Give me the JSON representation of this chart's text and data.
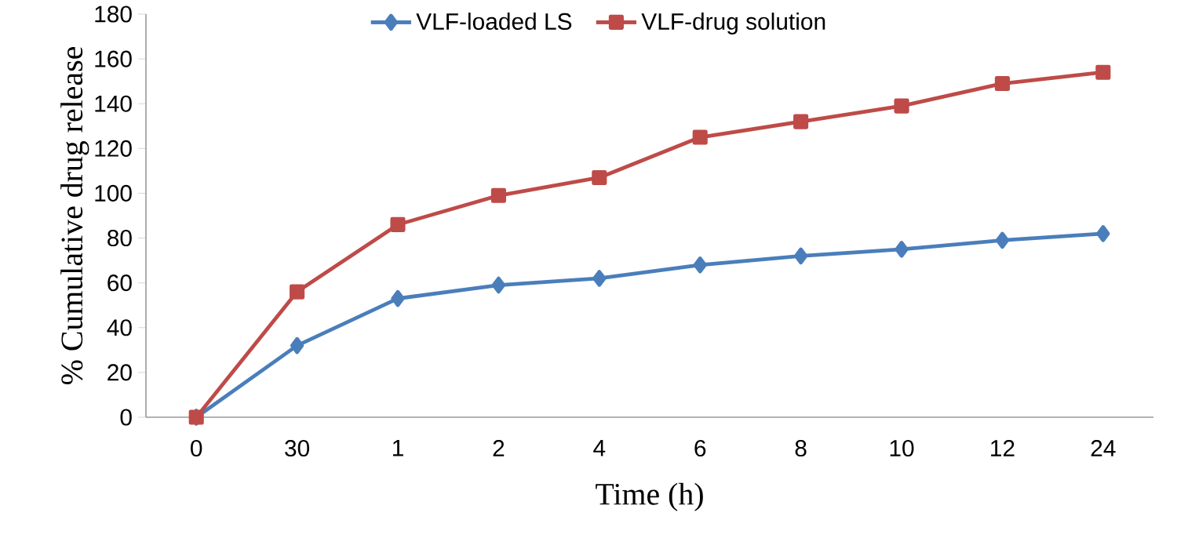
{
  "chart_data": {
    "type": "line",
    "xlabel": "Time (h)",
    "ylabel": "% Cumulative drug release",
    "categories": [
      "0",
      "30",
      "1",
      "2",
      "4",
      "6",
      "8",
      "10",
      "12",
      "24"
    ],
    "ylim": [
      0,
      180
    ],
    "yticks": [
      0,
      20,
      40,
      60,
      80,
      100,
      120,
      140,
      160,
      180
    ],
    "legend": "top",
    "grid": false,
    "series": [
      {
        "name": "VLF-loaded LS",
        "color": "#4a7ebb",
        "marker": "diamond",
        "values": [
          0,
          32,
          53,
          59,
          62,
          68,
          72,
          75,
          79,
          82
        ]
      },
      {
        "name": "VLF-drug solution",
        "color": "#be4b48",
        "marker": "square",
        "values": [
          0,
          56,
          86,
          99,
          107,
          125,
          132,
          139,
          149,
          154
        ]
      }
    ]
  }
}
